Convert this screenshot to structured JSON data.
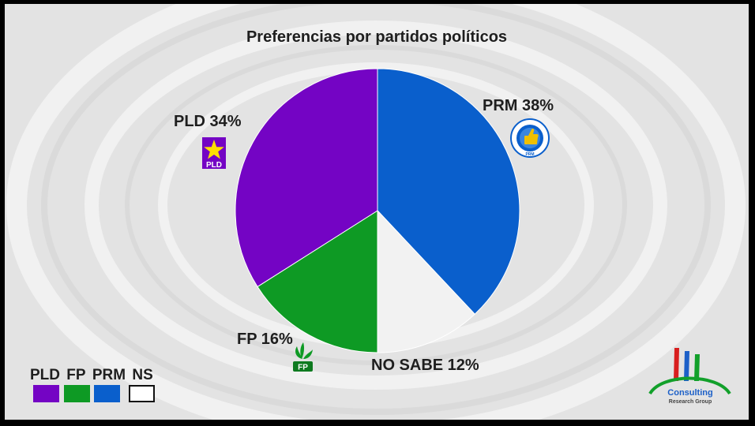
{
  "chart_data": {
    "type": "pie",
    "title": "Preferencias por partidos políticos",
    "slices": [
      {
        "key": "PRM",
        "label": "PRM 38%",
        "value": 38,
        "color": "#0a5fcc"
      },
      {
        "key": "NS",
        "label": "NO SABE 12%",
        "value": 12,
        "color": "#f2f2f2"
      },
      {
        "key": "FP",
        "label": "FP 16%",
        "value": 16,
        "color": "#0e9a24"
      },
      {
        "key": "PLD",
        "label": "PLD 34%",
        "value": 34,
        "color": "#7404c4"
      }
    ],
    "legend": {
      "placement": "bottom-left",
      "entries": [
        {
          "name": "PLD",
          "color": "#7404c4"
        },
        {
          "name": "FP",
          "color": "#0e9a24"
        },
        {
          "name": "PRM",
          "color": "#0a5fcc"
        },
        {
          "name": "NS",
          "color": "#ffffff"
        }
      ]
    }
  },
  "logos": {
    "pld": {
      "text": "PLD",
      "icon": "star-icon"
    },
    "fp": {
      "text": "FP",
      "icon": "leaf-icon"
    },
    "prm": {
      "text": "PRM",
      "icon": "thumbs-up-icon"
    },
    "brand": {
      "name": "Consulting",
      "tagline": "Research Group"
    }
  }
}
